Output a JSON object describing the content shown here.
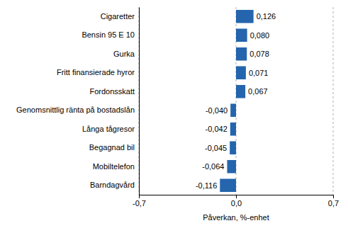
{
  "chart_data": {
    "type": "bar",
    "orientation": "horizontal",
    "x_label": "Påverkan, %-enhet",
    "categories": [
      "Cigaretter",
      "Bensin 95 E 10",
      "Gurka",
      "Fritt finansierade hyror",
      "Fordonsskatt",
      "Genomsnittlig ränta på bostadslån",
      "Långa tågresor",
      "Begagnad bil",
      "Mobiltelefon",
      "Barndagvård"
    ],
    "values": [
      0.126,
      0.08,
      0.078,
      0.071,
      0.067,
      -0.04,
      -0.042,
      -0.045,
      -0.064,
      -0.116
    ],
    "value_labels": [
      "0,126",
      "0,080",
      "0,078",
      "0,071",
      "0,067",
      "-0,040",
      "-0,042",
      "-0,045",
      "-0,064",
      "-0,116"
    ],
    "color": "#2465ad",
    "xlim": [
      -0.7,
      0.7
    ],
    "xticks": [
      {
        "value": -0.7,
        "label": "-0,7"
      },
      {
        "value": 0,
        "label": "0,0"
      },
      {
        "value": 0.7,
        "label": "0,7"
      }
    ],
    "grid": true,
    "data_labels": true
  }
}
